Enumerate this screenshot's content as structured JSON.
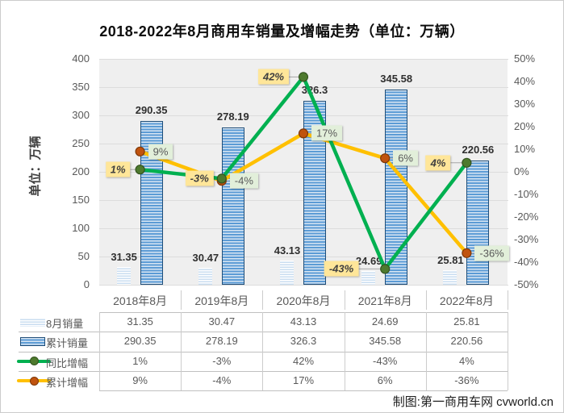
{
  "title": "2018-2022年8月商用车销量及增幅走势（单位：万辆）",
  "y_axis_title": "单位：万辆",
  "credit": "制图:第一商用车网 cvworld.cn",
  "chart_data": {
    "type": "bar",
    "subtype": "bar-line-combo",
    "title": "2018-2022年8月商用车销量及增幅走势（单位：万辆）",
    "categories": [
      "2018年8月",
      "2019年8月",
      "2020年8月",
      "2021年8月",
      "2022年8月"
    ],
    "series": [
      {
        "name": "8月销量",
        "kind": "bar",
        "style": "light-bar",
        "values": [
          31.35,
          30.47,
          43.13,
          24.69,
          25.81
        ],
        "label_suffix": ""
      },
      {
        "name": "累计销量",
        "kind": "bar",
        "style": "dark-bar",
        "values": [
          290.35,
          278.19,
          326.3,
          345.58,
          220.56
        ],
        "label_suffix": ""
      },
      {
        "name": "同比增幅",
        "kind": "line",
        "style": "green-line",
        "values": [
          1,
          -3,
          42,
          -43,
          4
        ],
        "label_suffix": "%"
      },
      {
        "name": "累计增幅",
        "kind": "line",
        "style": "orange-line",
        "values": [
          9,
          -4,
          17,
          6,
          -36
        ],
        "label_suffix": "%"
      }
    ],
    "left_axis": {
      "title": "单位：万辆",
      "min": 0,
      "max": 400,
      "step": 50,
      "ticks": [
        "400",
        "350",
        "300",
        "250",
        "200",
        "150",
        "100",
        "50",
        "0"
      ]
    },
    "right_axis": {
      "min": -50,
      "max": 50,
      "step": 10,
      "ticks": [
        "50%",
        "40%",
        "30%",
        "20%",
        "10%",
        "0%",
        "-10%",
        "-20%",
        "-30%",
        "-40%",
        "-50%"
      ]
    },
    "grid": true,
    "legend_position": "bottom-table",
    "colors": {
      "bar_light": "#BDD7EE",
      "bar_dark": "#5B9BD5",
      "bar_dark_border": "#1F4E79",
      "line_green": "#00B050",
      "line_orange": "#FFC000",
      "marker_green": "#4E7A2E",
      "marker_green_ring": "#33531F",
      "marker_orange": "#C0530F",
      "marker_orange_ring": "#7F3807",
      "label_bg_yellow": "#FFE699",
      "label_bg_green": "#E2EFDA",
      "plot_bg": "#EFEFEF",
      "gridline": "#DCDCDC"
    }
  }
}
